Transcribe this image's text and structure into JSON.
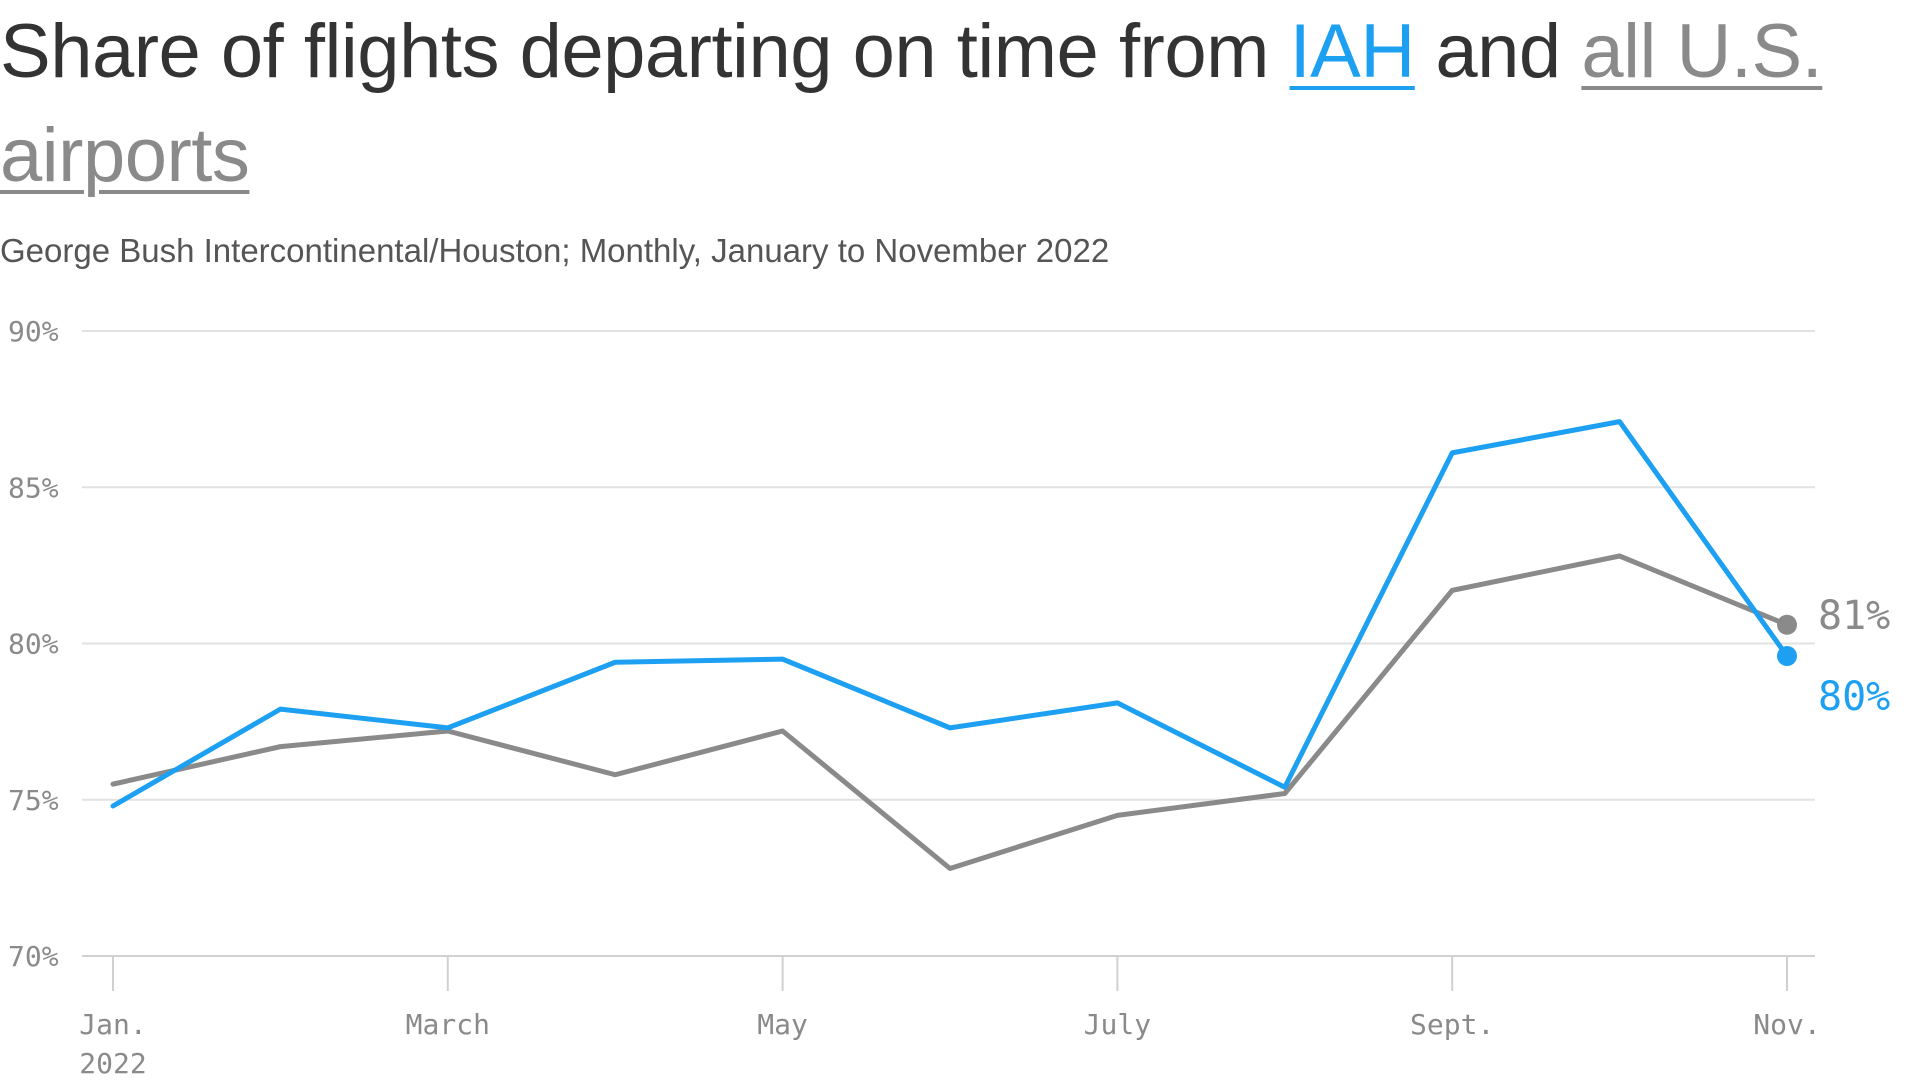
{
  "chart_data": {
    "type": "line",
    "title_parts": {
      "before": "Share of flights departing on time from",
      "series_a": "IAH",
      "middle": "and",
      "series_b": "all U.S. airports"
    },
    "subtitle": "George Bush Intercontinental/Houston; Monthly, January to November 2022",
    "x": [
      "Jan. 2022",
      "Feb. 2022",
      "Mar. 2022",
      "Apr. 2022",
      "May 2022",
      "Jun. 2022",
      "Jul. 2022",
      "Aug. 2022",
      "Sep. 2022",
      "Oct. 2022",
      "Nov. 2022"
    ],
    "x_tick_labels": [
      {
        "index": 0,
        "line1": "Jan.",
        "line2": "2022"
      },
      {
        "index": 2,
        "line1": "March",
        "line2": ""
      },
      {
        "index": 4,
        "line1": "May",
        "line2": ""
      },
      {
        "index": 6,
        "line1": "July",
        "line2": ""
      },
      {
        "index": 8,
        "line1": "Sept.",
        "line2": ""
      },
      {
        "index": 10,
        "line1": "Nov.",
        "line2": ""
      }
    ],
    "y_ticks": [
      70,
      75,
      80,
      85,
      90
    ],
    "y_tick_labels": [
      "70%",
      "75%",
      "80%",
      "85%",
      "90%"
    ],
    "ylim": [
      70,
      90
    ],
    "grid": true,
    "series": [
      {
        "name": "all U.S. airports",
        "color": "#8a8a8a",
        "values": [
          75.5,
          76.7,
          77.2,
          75.8,
          77.2,
          72.8,
          74.5,
          75.2,
          81.7,
          82.8,
          80.6
        ],
        "end_label": "81%"
      },
      {
        "name": "IAH",
        "color": "#1ea0f2",
        "values": [
          74.8,
          77.9,
          77.3,
          79.4,
          79.5,
          77.3,
          78.1,
          75.4,
          86.1,
          87.1,
          79.6
        ],
        "end_label": "80%"
      }
    ]
  }
}
